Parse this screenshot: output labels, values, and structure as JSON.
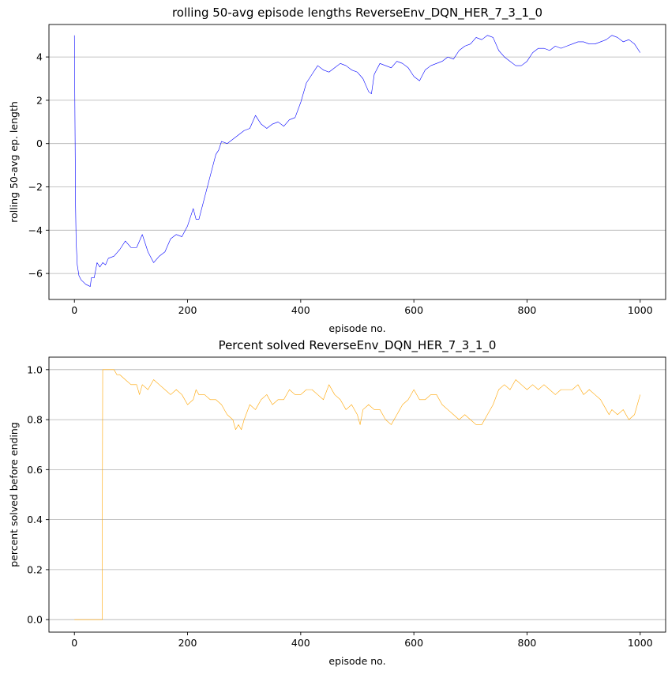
{
  "chart_data": [
    {
      "type": "line",
      "title": "rolling 50-avg episode lengths ReverseEnv_DQN_HER_7_3_1_0",
      "xlabel": "episode no.",
      "ylabel": "rolling 50-avg ep. length",
      "xlim": [
        -45,
        1045
      ],
      "ylim": [
        -7.2,
        5.5
      ],
      "xticks": [
        0,
        200,
        400,
        600,
        800,
        1000
      ],
      "yticks": [
        -6,
        -4,
        -2,
        0,
        2,
        4
      ],
      "xtick_labels": [
        "0",
        "200",
        "400",
        "600",
        "800",
        "1000"
      ],
      "ytick_labels": [
        "−6",
        "−4",
        "−2",
        "0",
        "2",
        "4"
      ],
      "grid": "y",
      "color": "#0000ff",
      "series": [
        {
          "x": [
            0,
            1,
            2,
            3,
            5,
            8,
            12,
            20,
            28,
            30,
            35,
            40,
            45,
            50,
            55,
            60,
            70,
            80,
            90,
            100,
            110,
            120,
            125,
            130,
            140,
            150,
            160,
            170,
            180,
            190,
            200,
            210,
            215,
            220,
            230,
            240,
            250,
            255,
            260,
            270,
            280,
            290,
            300,
            310,
            320,
            330,
            340,
            350,
            360,
            370,
            380,
            390,
            400,
            410,
            420,
            430,
            440,
            450,
            460,
            470,
            480,
            490,
            500,
            510,
            520,
            525,
            530,
            540,
            550,
            560,
            570,
            580,
            590,
            600,
            610,
            620,
            630,
            640,
            650,
            660,
            670,
            680,
            690,
            700,
            710,
            720,
            730,
            740,
            750,
            760,
            770,
            780,
            790,
            800,
            810,
            820,
            830,
            840,
            850,
            860,
            870,
            880,
            890,
            900,
            910,
            920,
            930,
            940,
            950,
            960,
            970,
            980,
            990,
            1000
          ],
          "y": [
            5.0,
            1.0,
            -2.8,
            -4.5,
            -5.6,
            -6.1,
            -6.3,
            -6.5,
            -6.6,
            -6.2,
            -6.2,
            -5.5,
            -5.7,
            -5.5,
            -5.6,
            -5.3,
            -5.2,
            -4.9,
            -4.5,
            -4.8,
            -4.8,
            -4.2,
            -4.6,
            -5.0,
            -5.5,
            -5.2,
            -5.0,
            -4.4,
            -4.2,
            -4.3,
            -3.8,
            -3.0,
            -3.5,
            -3.5,
            -2.5,
            -1.5,
            -0.5,
            -0.3,
            0.1,
            0.0,
            0.2,
            0.4,
            0.6,
            0.7,
            1.3,
            0.9,
            0.7,
            0.9,
            1.0,
            0.8,
            1.1,
            1.2,
            1.9,
            2.8,
            3.2,
            3.6,
            3.4,
            3.3,
            3.5,
            3.7,
            3.6,
            3.4,
            3.3,
            3.0,
            2.4,
            2.3,
            3.2,
            3.7,
            3.6,
            3.5,
            3.8,
            3.7,
            3.5,
            3.1,
            2.9,
            3.4,
            3.6,
            3.7,
            3.8,
            4.0,
            3.9,
            4.3,
            4.5,
            4.6,
            4.9,
            4.8,
            5.0,
            4.9,
            4.3,
            4.0,
            3.8,
            3.6,
            3.6,
            3.8,
            4.2,
            4.4,
            4.4,
            4.3,
            4.5,
            4.4,
            4.5,
            4.6,
            4.7,
            4.7,
            4.6,
            4.6,
            4.7,
            4.8,
            5.0,
            4.9,
            4.7,
            4.8,
            4.6,
            4.2
          ]
        }
      ]
    },
    {
      "type": "line",
      "title": "Percent solved ReverseEnv_DQN_HER_7_3_1_0",
      "xlabel": "episode no.",
      "ylabel": "percent solved before ending",
      "xlim": [
        -45,
        1045
      ],
      "ylim": [
        -0.05,
        1.05
      ],
      "xticks": [
        0,
        200,
        400,
        600,
        800,
        1000
      ],
      "yticks": [
        0.0,
        0.2,
        0.4,
        0.6,
        0.8,
        1.0
      ],
      "xtick_labels": [
        "0",
        "200",
        "400",
        "600",
        "800",
        "1000"
      ],
      "ytick_labels": [
        "0.0",
        "0.2",
        "0.4",
        "0.6",
        "0.8",
        "1.0"
      ],
      "grid": "y",
      "color": "#ffa500",
      "series": [
        {
          "x": [
            0,
            49,
            50,
            51,
            70,
            75,
            80,
            90,
            100,
            110,
            115,
            120,
            130,
            140,
            150,
            160,
            170,
            180,
            190,
            200,
            210,
            215,
            220,
            230,
            240,
            250,
            260,
            270,
            280,
            285,
            290,
            295,
            300,
            310,
            320,
            330,
            340,
            350,
            360,
            370,
            380,
            390,
            400,
            410,
            420,
            430,
            440,
            450,
            460,
            470,
            480,
            490,
            500,
            505,
            510,
            520,
            530,
            540,
            550,
            560,
            570,
            575,
            580,
            590,
            600,
            610,
            620,
            630,
            640,
            650,
            660,
            670,
            680,
            690,
            700,
            710,
            720,
            730,
            740,
            750,
            760,
            770,
            780,
            790,
            800,
            810,
            820,
            830,
            840,
            850,
            860,
            870,
            880,
            890,
            900,
            910,
            920,
            930,
            940,
            945,
            950,
            960,
            970,
            980,
            990,
            1000
          ],
          "y": [
            0.0,
            0.0,
            1.0,
            1.0,
            1.0,
            0.98,
            0.98,
            0.96,
            0.94,
            0.94,
            0.9,
            0.94,
            0.92,
            0.96,
            0.94,
            0.92,
            0.9,
            0.92,
            0.9,
            0.86,
            0.88,
            0.92,
            0.9,
            0.9,
            0.88,
            0.88,
            0.86,
            0.82,
            0.8,
            0.76,
            0.78,
            0.76,
            0.8,
            0.86,
            0.84,
            0.88,
            0.9,
            0.86,
            0.88,
            0.88,
            0.92,
            0.9,
            0.9,
            0.92,
            0.92,
            0.9,
            0.88,
            0.94,
            0.9,
            0.88,
            0.84,
            0.86,
            0.82,
            0.78,
            0.84,
            0.86,
            0.84,
            0.84,
            0.8,
            0.78,
            0.82,
            0.84,
            0.86,
            0.88,
            0.92,
            0.88,
            0.88,
            0.9,
            0.9,
            0.86,
            0.84,
            0.82,
            0.8,
            0.82,
            0.8,
            0.78,
            0.78,
            0.82,
            0.86,
            0.92,
            0.94,
            0.92,
            0.96,
            0.94,
            0.92,
            0.94,
            0.92,
            0.94,
            0.92,
            0.9,
            0.92,
            0.92,
            0.92,
            0.94,
            0.9,
            0.92,
            0.9,
            0.88,
            0.84,
            0.82,
            0.84,
            0.82,
            0.84,
            0.8,
            0.82,
            0.9
          ]
        }
      ]
    }
  ]
}
